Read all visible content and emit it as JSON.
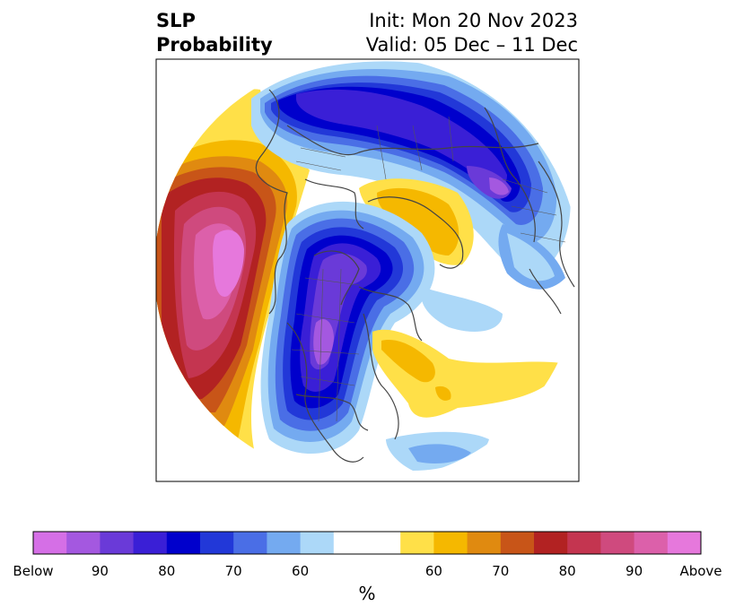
{
  "title": {
    "left_line1": "SLP",
    "left_line2": "Probability",
    "right_line1": "Init: Mon 20 Nov 2023",
    "right_line2": "Valid: 05 Dec – 11 Dec"
  },
  "colorbar": {
    "colors": [
      "#d56fe6",
      "#a458e0",
      "#6a3ad8",
      "#3a1fd6",
      "#0000cc",
      "#2238d8",
      "#4a6ee6",
      "#74aaf0",
      "#acd8f8",
      "#ffffff",
      "#ffffff",
      "#ffe048",
      "#f5b800",
      "#e08a10",
      "#c85518",
      "#b22222",
      "#c43550",
      "#cf4a7e",
      "#dc60aa",
      "#e678dc"
    ],
    "tick_labels": [
      "Below",
      "90",
      "80",
      "70",
      "60",
      "60",
      "70",
      "80",
      "90",
      "Above"
    ],
    "unit": "%"
  },
  "legend_categories": {
    "below": "Below",
    "above": "Above"
  }
}
